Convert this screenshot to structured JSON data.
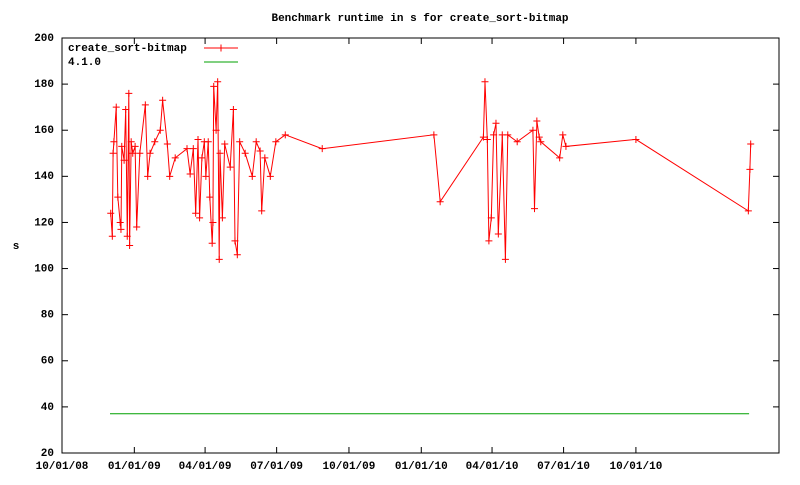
{
  "chart_data": {
    "type": "line",
    "title": "Benchmark runtime in s for create_sort-bitmap",
    "y_label": "s",
    "xlim": [
      "10/01/08",
      "04/01/11"
    ],
    "xticks": [
      "10/01/08",
      "01/01/09",
      "04/01/09",
      "07/01/09",
      "10/01/09",
      "01/01/10",
      "04/01/10",
      "07/01/10",
      "10/01/10"
    ],
    "ylim": [
      20,
      200
    ],
    "yticks": [
      20,
      40,
      60,
      80,
      100,
      120,
      140,
      160,
      180,
      200
    ],
    "legend": "top-left",
    "series": [
      {
        "name": "create_sort-bitmap",
        "color": "#ff0000",
        "marker": "plus",
        "x": [
          "12/02/08",
          "12/04/08",
          "12/05/08",
          "12/06/08",
          "12/09/08",
          "12/11/08",
          "12/14/08",
          "12/15/08",
          "12/16/08",
          "12/19/08",
          "12/21/08",
          "12/23/08",
          "12/25/08",
          "12/26/08",
          "12/28/08",
          "12/30/08",
          "01/02/09",
          "01/04/09",
          "01/08/09",
          "01/15/09",
          "01/18/09",
          "01/21/09",
          "01/27/09",
          "02/03/09",
          "02/06/09",
          "02/12/09",
          "02/15/09",
          "02/22/09",
          "03/09/09",
          "03/13/09",
          "03/17/09",
          "03/20/09",
          "03/23/09",
          "03/25/09",
          "03/28/09",
          "03/31/09",
          "04/02/09",
          "04/05/09",
          "04/07/09",
          "04/10/09",
          "04/11/09",
          "04/12/09",
          "04/15/09",
          "04/17/09",
          "04/19/09",
          "04/20/09",
          "04/23/09",
          "04/26/09",
          "05/03/09",
          "05/07/09",
          "05/09/09",
          "05/12/09",
          "05/15/09",
          "05/22/09",
          "05/31/09",
          "06/05/09",
          "06/10/09",
          "06/12/09",
          "06/16/09",
          "06/23/09",
          "06/30/09",
          "07/12/09",
          "08/28/09",
          "01/17/10",
          "01/25/10",
          "03/21/10",
          "03/23/10",
          "03/26/10",
          "03/28/10",
          "03/31/10",
          "04/03/10",
          "04/06/10",
          "04/09/10",
          "04/14/10",
          "04/18/10",
          "04/21/10",
          "05/03/10",
          "05/23/10",
          "05/25/10",
          "05/28/10",
          "05/31/10",
          "06/02/10",
          "06/26/10",
          "06/30/10",
          "07/04/10",
          "10/01/10",
          "02/21/11",
          "02/23/11",
          "02/24/11"
        ],
        "values": [
          124,
          114,
          150,
          155,
          170,
          131,
          120,
          117,
          153,
          147,
          169,
          114,
          176,
          110,
          155,
          150,
          153,
          118,
          150,
          171,
          140,
          150,
          155,
          160,
          173,
          154,
          140,
          148,
          152,
          141,
          152,
          124,
          156,
          122,
          148,
          155,
          140,
          155,
          131,
          111,
          120,
          179,
          160,
          181,
          104,
          150,
          122,
          154,
          144,
          169,
          112,
          106,
          155,
          150,
          140,
          155,
          151,
          125,
          148,
          140,
          155,
          158,
          152,
          158,
          129,
          157,
          181,
          156,
          112,
          122,
          158,
          163,
          115,
          158,
          104,
          158,
          155,
          160,
          126,
          164,
          157,
          155,
          148,
          158,
          153,
          156,
          125,
          143,
          154
        ]
      },
      {
        "name": "4.1.0",
        "color": "#00a000",
        "marker": "none",
        "x": [
          "12/01/08",
          "02/22/11"
        ],
        "values": [
          37,
          37
        ]
      }
    ]
  }
}
